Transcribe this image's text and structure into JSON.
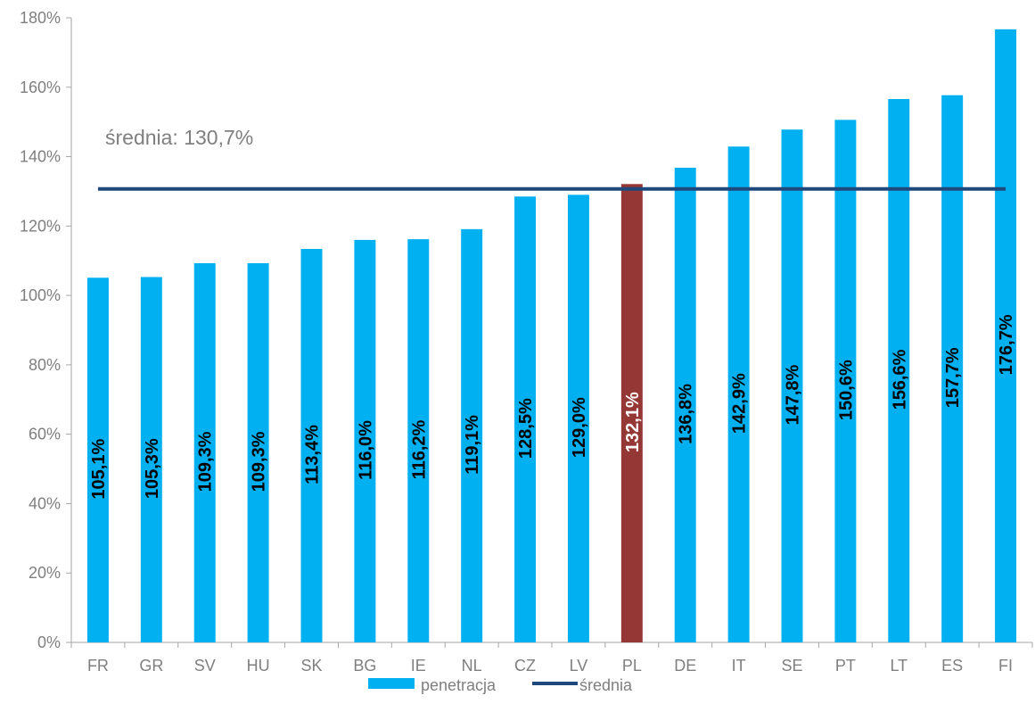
{
  "chart_data": {
    "type": "bar",
    "categories": [
      "FR",
      "GR",
      "SV",
      "HU",
      "SK",
      "BG",
      "IE",
      "NL",
      "CZ",
      "LV",
      "PL",
      "DE",
      "IT",
      "SE",
      "PT",
      "LT",
      "ES",
      "FI"
    ],
    "series": [
      {
        "name": "penetracja",
        "values": [
          105.1,
          105.3,
          109.3,
          109.3,
          113.4,
          116.0,
          116.2,
          119.1,
          128.5,
          129.0,
          132.1,
          136.8,
          142.9,
          147.8,
          150.6,
          156.6,
          157.7,
          176.7
        ],
        "labels": [
          "105,1%",
          "105,3%",
          "109,3%",
          "109,3%",
          "113,4%",
          "116,0%",
          "116,2%",
          "119,1%",
          "128,5%",
          "129,0%",
          "132,1%",
          "136,8%",
          "142,9%",
          "147,8%",
          "150,6%",
          "156,6%",
          "157,7%",
          "176,7%"
        ],
        "color": "#00B0F0",
        "highlight": {
          "category": "PL",
          "color": "#953735"
        }
      },
      {
        "name": "średnia",
        "type": "line",
        "value": 130.7,
        "color": "#1F497D"
      }
    ],
    "annotation": "średnia: 130,7%",
    "y_ticks": [
      0,
      20,
      40,
      60,
      80,
      100,
      120,
      140,
      160,
      180
    ],
    "y_tick_labels": [
      "0%",
      "20%",
      "40%",
      "60%",
      "80%",
      "100%",
      "120%",
      "140%",
      "160%",
      "180%"
    ],
    "ylim": [
      0,
      180
    ],
    "legend_position": "bottom",
    "grid": false
  }
}
